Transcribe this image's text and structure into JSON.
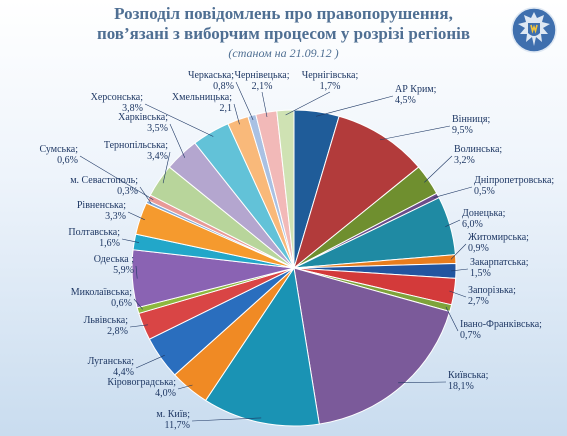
{
  "title_line1": "Розподіл повідомлень про правопорушення,",
  "title_line2": "пов’язані з виборчим процесом у розрізі регіонів",
  "subtitle": "(станом на 21.09.12 )",
  "emblem": "ukraine-police-emblem",
  "chart_data": {
    "type": "pie",
    "unit": "%",
    "slices": [
      {
        "label": "АР Крим;",
        "value": 4.5,
        "text": "4,5%",
        "color": "#1f5c99"
      },
      {
        "label": "Вінниця;",
        "value": 9.5,
        "text": "9,5%",
        "color": "#b23b3b"
      },
      {
        "label": "Волинська;",
        "value": 3.2,
        "text": "3,2%",
        "color": "#6f8f2f"
      },
      {
        "label": "Дніпропетровська;",
        "value": 0.5,
        "text": "0,5%",
        "color": "#6b4c8a"
      },
      {
        "label": "Донецька;",
        "value": 6.0,
        "text": "6,0%",
        "color": "#1f8aa3"
      },
      {
        "label": "Житомирська;",
        "value": 0.9,
        "text": "0,9%",
        "color": "#e87d1e"
      },
      {
        "label": "Закарпатська;",
        "value": 1.5,
        "text": "1,5%",
        "color": "#2255a0"
      },
      {
        "label": "Запорізька;",
        "value": 2.7,
        "text": "2,7%",
        "color": "#d33a3a"
      },
      {
        "label": "Івано-Франківська;",
        "value": 0.7,
        "text": "0,7%",
        "color": "#7ea33a"
      },
      {
        "label": "Київська;",
        "value": 18.1,
        "text": "18,1%",
        "color": "#7b5a9a"
      },
      {
        "label": "м. Київ;",
        "value": 11.7,
        "text": "11,7%",
        "color": "#1a93b4"
      },
      {
        "label": "Кіровоградська;",
        "value": 4.0,
        "text": "4,0%",
        "color": "#f08a24"
      },
      {
        "label": "Луганська;",
        "value": 4.4,
        "text": "4,4%",
        "color": "#2a6ebe"
      },
      {
        "label": "Львівська;",
        "value": 2.8,
        "text": "2,8%",
        "color": "#d94545"
      },
      {
        "label": "Миколаївська;",
        "value": 0.6,
        "text": "0,6%",
        "color": "#8db83f"
      },
      {
        "label": "Одеська ;",
        "value": 5.9,
        "text": "5,9%",
        "color": "#8a63b3"
      },
      {
        "label": "Полтавська;",
        "value": 1.6,
        "text": "1,6%",
        "color": "#22a7c9"
      },
      {
        "label": "Рівненська;",
        "value": 3.3,
        "text": "3,3%",
        "color": "#f59a2e"
      },
      {
        "label": "м. Севастополь;",
        "value": 0.3,
        "text": "0,3%",
        "color": "#7fa7d6"
      },
      {
        "label": "Сумська;",
        "value": 0.6,
        "text": "0,6%",
        "color": "#e89a98"
      },
      {
        "label": "Тернопільська;",
        "value": 3.4,
        "text": "3,4%",
        "color": "#b8d59b"
      },
      {
        "label": "Харківська;",
        "value": 3.5,
        "text": "3,5%",
        "color": "#b4a6cf"
      },
      {
        "label": "Херсонська;",
        "value": 3.8,
        "text": "3,8%",
        "color": "#62c2d8"
      },
      {
        "label": "Хмельницька;",
        "value": 2.1,
        "text": "2,1",
        "color": "#f9b97a"
      },
      {
        "label": "Черкаська;",
        "value": 0.8,
        "text": "0,8%",
        "color": "#a9c1e3"
      },
      {
        "label": "Чернівецька;",
        "value": 2.1,
        "text": "2,1%",
        "color": "#f2b9b8"
      },
      {
        "label": "Чернігівська;",
        "value": 1.7,
        "text": "1,7%",
        "color": "#cfe2b3"
      }
    ]
  }
}
